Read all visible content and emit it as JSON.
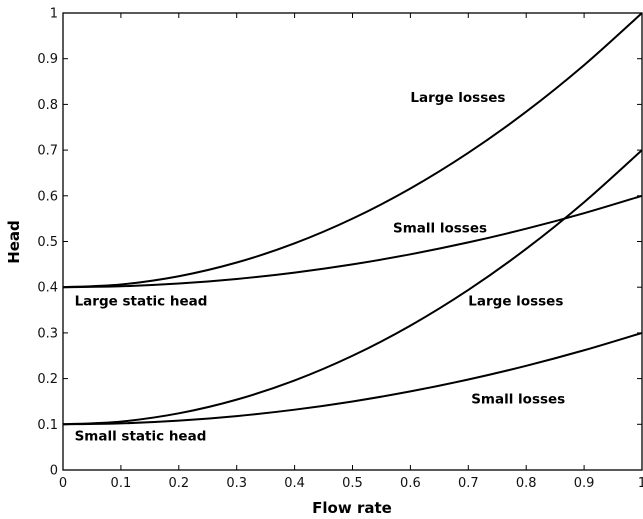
{
  "chart_data": {
    "type": "line",
    "xlabel": "Flow rate",
    "ylabel": "Head",
    "xlim": [
      0,
      1
    ],
    "ylim": [
      0,
      1
    ],
    "grid": false,
    "xticks": [
      "0",
      "0.1",
      "0.2",
      "0.3",
      "0.4",
      "0.5",
      "0.6",
      "0.7",
      "0.8",
      "0.9",
      "1"
    ],
    "yticks": [
      "0",
      "0.1",
      "0.2",
      "0.3",
      "0.4",
      "0.5",
      "0.6",
      "0.7",
      "0.8",
      "0.9",
      "1"
    ],
    "x": [
      0,
      0.1,
      0.2,
      0.3,
      0.4,
      0.5,
      0.6,
      0.7,
      0.8,
      0.9,
      1.0
    ],
    "series": [
      {
        "values": [
          0.4,
          0.406,
          0.424,
          0.454,
          0.496,
          0.55,
          0.616,
          0.694,
          0.784,
          0.886,
          1.0
        ]
      },
      {
        "values": [
          0.4,
          0.402,
          0.408,
          0.418,
          0.432,
          0.45,
          0.472,
          0.498,
          0.528,
          0.562,
          0.6
        ]
      },
      {
        "values": [
          0.1,
          0.106,
          0.124,
          0.154,
          0.196,
          0.25,
          0.316,
          0.394,
          0.484,
          0.586,
          0.7
        ]
      },
      {
        "values": [
          0.1,
          0.102,
          0.108,
          0.118,
          0.132,
          0.15,
          0.172,
          0.198,
          0.228,
          0.262,
          0.3
        ]
      }
    ],
    "annotations": [
      {
        "text": "Large losses",
        "x": 0.6,
        "y": 0.805
      },
      {
        "text": "Small losses",
        "x": 0.57,
        "y": 0.52
      },
      {
        "text": "Large static head",
        "x": 0.02,
        "y": 0.36
      },
      {
        "text": "Large losses",
        "x": 0.7,
        "y": 0.36
      },
      {
        "text": "Small losses",
        "x": 0.705,
        "y": 0.145
      },
      {
        "text": "Small static head",
        "x": 0.02,
        "y": 0.065
      }
    ]
  }
}
